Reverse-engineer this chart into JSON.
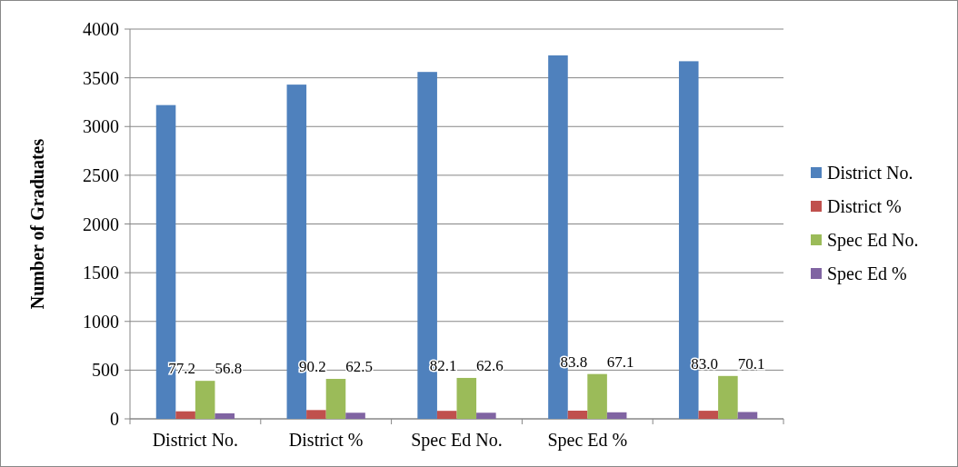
{
  "chart_data": {
    "type": "bar",
    "ylabel": "Number of Graduates",
    "categories": [
      "District No.",
      "District %",
      "Spec Ed No.",
      "Spec Ed %",
      null
    ],
    "series": [
      {
        "name": "District No.",
        "color": "#4f81bd",
        "values": [
          3220,
          3430,
          3560,
          3730,
          3670
        ]
      },
      {
        "name": "District %",
        "color": "#c0504d",
        "values": [
          77.2,
          90.2,
          82.1,
          83.8,
          83.0
        ],
        "value_labels": [
          "77.2",
          "90.2",
          "82.1",
          "83.8",
          "83.0"
        ]
      },
      {
        "name": "Spec Ed No.",
        "color": "#9bbb59",
        "values": [
          390,
          410,
          420,
          460,
          440
        ]
      },
      {
        "name": "Spec Ed %",
        "color": "#8064a2",
        "values": [
          56.8,
          62.5,
          62.6,
          67.1,
          70.1
        ],
        "value_labels": [
          "56.8",
          "62.5",
          "62.6",
          "67.1",
          "70.1"
        ]
      }
    ],
    "ylim": [
      0,
      4000
    ],
    "yticks": [
      0,
      500,
      1000,
      1500,
      2000,
      2500,
      3000,
      3500,
      4000
    ],
    "grid": "y",
    "legend": "right"
  }
}
